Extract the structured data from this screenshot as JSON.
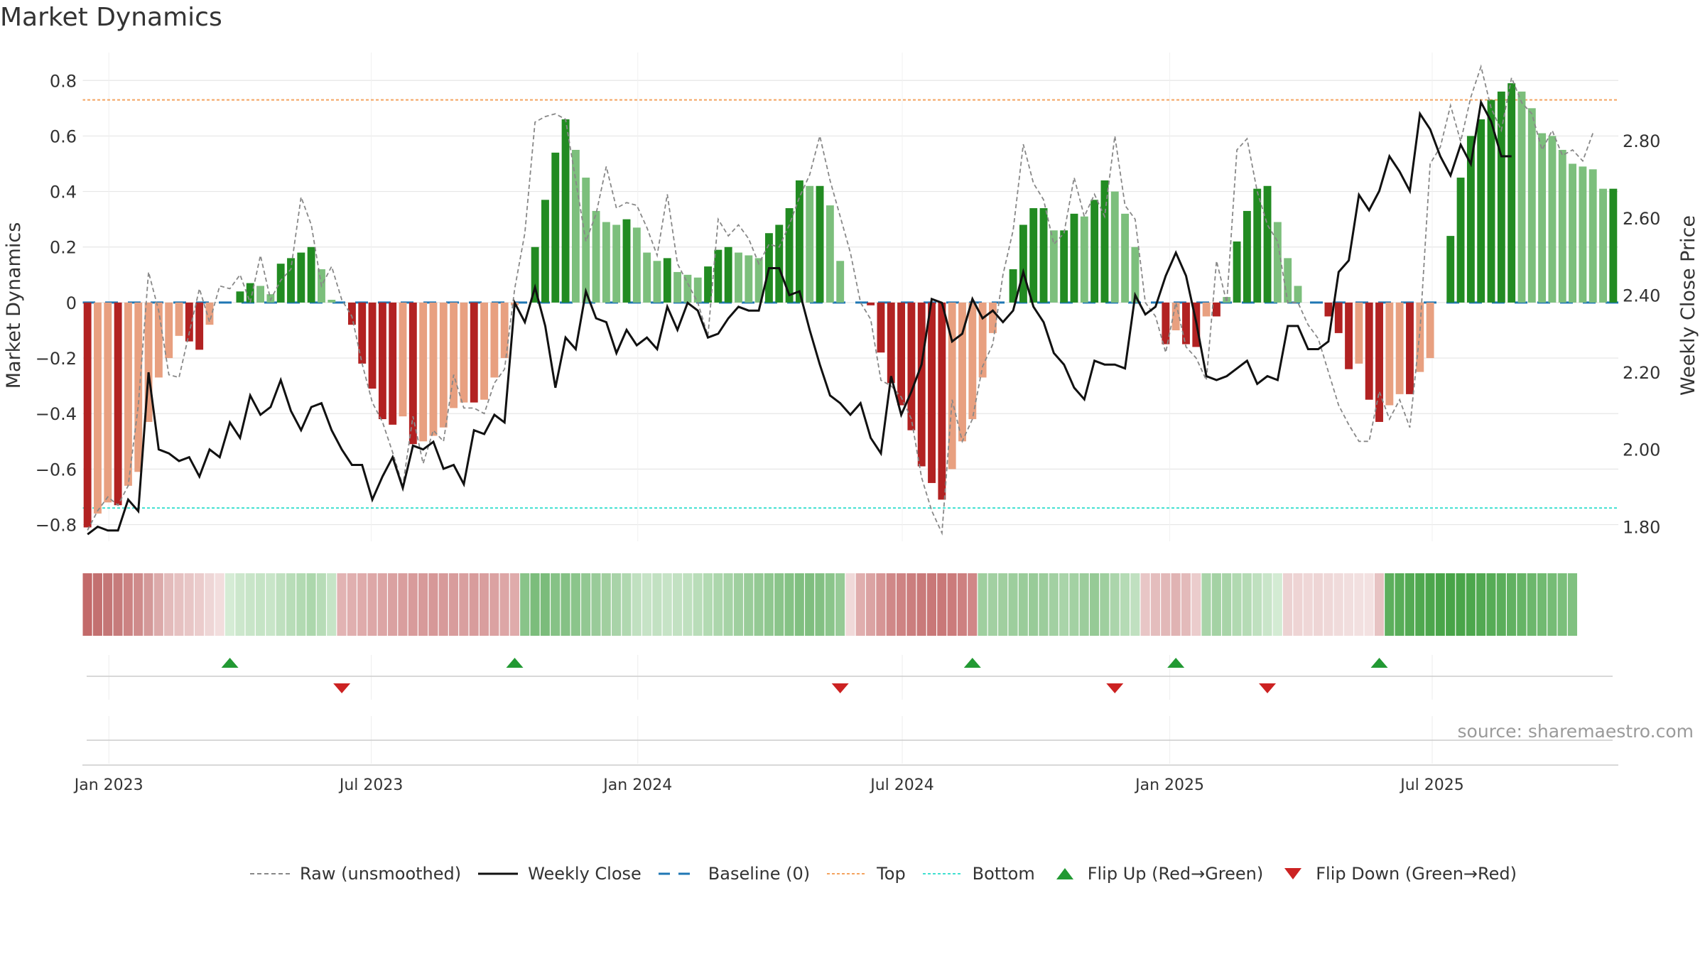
{
  "title": "Market Dynamics",
  "source": "source: sharemaestro.com",
  "chart_data": {
    "type": "bar",
    "y_label": "Market Dynamics",
    "y2_label": "Weekly Close Price",
    "y_ticks": [
      "0.8",
      "0.6",
      "0.4",
      "0.2",
      "0",
      "−0.2",
      "−0.4",
      "−0.6",
      "−0.8"
    ],
    "y_tick_values": [
      0.8,
      0.6,
      0.4,
      0.2,
      0,
      -0.2,
      -0.4,
      -0.6,
      -0.8
    ],
    "y2_ticks": [
      "2.80",
      "2.60",
      "2.40",
      "2.20",
      "2.00",
      "1.80"
    ],
    "y2_tick_values": [
      2.8,
      2.6,
      2.4,
      2.2,
      2.0,
      1.8
    ],
    "ylim": [
      -0.86,
      0.88
    ],
    "y2lim": [
      1.762,
      3.014
    ],
    "x_ticks": [
      "Jan 2023",
      "Jul 2023",
      "Jan 2024",
      "Jul 2024",
      "Jan 2025",
      "Jul 2025"
    ],
    "x_tick_weeks": [
      2.6,
      28.4,
      54.6,
      80.6,
      106.9,
      132.7
    ],
    "top_level": 0.73,
    "bottom_level": -0.74,
    "colors": {
      "strong_pos": "#228B22",
      "weak_pos": "#7CBF7C",
      "strong_neg": "#B22222",
      "weak_neg": "#E8A080",
      "close": "#111111",
      "raw": "#888888",
      "baseline": "#1f77b4",
      "top": "#F4A460",
      "bottom": "#40E0D0",
      "flip_up": "#229933",
      "flip_down": "#CC2222"
    },
    "series": [
      {
        "name": "Market Dynamics",
        "values": [
          -0.81,
          -0.76,
          -0.72,
          -0.73,
          -0.66,
          -0.61,
          -0.43,
          -0.27,
          -0.2,
          -0.12,
          -0.14,
          -0.17,
          -0.08,
          0.0,
          0.0,
          0.04,
          0.07,
          0.06,
          0.03,
          0.14,
          0.16,
          0.18,
          0.2,
          0.12,
          0.01,
          0.0,
          -0.08,
          -0.22,
          -0.31,
          -0.42,
          -0.44,
          -0.41,
          -0.51,
          -0.5,
          -0.48,
          -0.45,
          -0.38,
          -0.36,
          -0.36,
          -0.35,
          -0.27,
          -0.2,
          -0.01,
          0.0,
          0.2,
          0.37,
          0.54,
          0.66,
          0.55,
          0.45,
          0.33,
          0.29,
          0.28,
          0.3,
          0.27,
          0.18,
          0.15,
          0.16,
          0.11,
          0.1,
          0.09,
          0.13,
          0.19,
          0.2,
          0.18,
          0.17,
          0.16,
          0.25,
          0.28,
          0.34,
          0.44,
          0.42,
          0.42,
          0.35,
          0.15,
          0.0,
          0.0,
          -0.01,
          -0.18,
          -0.29,
          -0.37,
          -0.46,
          -0.59,
          -0.65,
          -0.71,
          -0.6,
          -0.5,
          -0.42,
          -0.27,
          -0.11,
          0.0,
          0.12,
          0.28,
          0.34,
          0.34,
          0.26,
          0.26,
          0.32,
          0.31,
          0.37,
          0.44,
          0.4,
          0.32,
          0.2,
          0.0,
          0.0,
          -0.15,
          -0.1,
          -0.15,
          -0.16,
          -0.05,
          -0.05,
          0.02,
          0.22,
          0.33,
          0.41,
          0.42,
          0.29,
          0.16,
          0.06,
          0.0,
          0.0,
          -0.05,
          -0.11,
          -0.24,
          -0.22,
          -0.35,
          -0.43,
          -0.37,
          -0.33,
          -0.33,
          -0.25,
          -0.2,
          0.0,
          0.24,
          0.45,
          0.6,
          0.66,
          0.73,
          0.76,
          0.79,
          0.76,
          0.7,
          0.61,
          0.6,
          0.55,
          0.5,
          0.49,
          0.48,
          0.41,
          0.41
        ]
      },
      {
        "name": "Raw (unsmoothed)",
        "values": [
          -0.82,
          -0.75,
          -0.7,
          -0.73,
          -0.66,
          -0.37,
          0.11,
          -0.03,
          -0.26,
          -0.27,
          -0.11,
          0.05,
          -0.07,
          0.06,
          0.05,
          0.1,
          0.0,
          0.17,
          0.01,
          0.08,
          0.12,
          0.38,
          0.28,
          0.06,
          0.13,
          0.01,
          -0.05,
          -0.22,
          -0.36,
          -0.43,
          -0.54,
          -0.66,
          -0.41,
          -0.58,
          -0.46,
          -0.5,
          -0.26,
          -0.38,
          -0.38,
          -0.4,
          -0.29,
          -0.24,
          0.05,
          0.25,
          0.65,
          0.67,
          0.68,
          0.66,
          0.44,
          0.22,
          0.32,
          0.49,
          0.34,
          0.36,
          0.35,
          0.27,
          0.17,
          0.39,
          0.14,
          0.07,
          0.0,
          -0.12,
          0.3,
          0.24,
          0.28,
          0.23,
          0.14,
          0.21,
          0.2,
          0.28,
          0.38,
          0.46,
          0.6,
          0.44,
          0.31,
          0.18,
          0.0,
          -0.06,
          -0.28,
          -0.3,
          -0.34,
          -0.42,
          -0.63,
          -0.75,
          -0.83,
          -0.35,
          -0.5,
          -0.42,
          -0.23,
          -0.15,
          0.1,
          0.26,
          0.57,
          0.43,
          0.37,
          0.21,
          0.25,
          0.45,
          0.31,
          0.39,
          0.31,
          0.6,
          0.35,
          0.3,
          0.0,
          -0.05,
          -0.18,
          0.0,
          -0.16,
          -0.2,
          -0.28,
          0.15,
          0.0,
          0.55,
          0.59,
          0.4,
          0.28,
          0.22,
          0.0,
          0.0,
          -0.08,
          -0.13,
          -0.25,
          -0.37,
          -0.44,
          -0.5,
          -0.5,
          -0.32,
          -0.42,
          -0.35,
          -0.45,
          -0.1,
          0.5,
          0.56,
          0.71,
          0.58,
          0.74,
          0.85,
          0.7,
          0.62,
          0.81,
          0.72,
          0.68,
          0.55,
          0.62,
          0.53,
          0.55,
          0.51,
          0.61
        ]
      },
      {
        "name": "Weekly Close",
        "values": [
          1.78,
          1.8,
          1.79,
          1.79,
          1.87,
          1.84,
          2.2,
          2.0,
          1.99,
          1.97,
          1.98,
          1.93,
          2.0,
          1.98,
          2.07,
          2.03,
          2.14,
          2.09,
          2.11,
          2.18,
          2.1,
          2.05,
          2.11,
          2.12,
          2.05,
          2.0,
          1.96,
          1.96,
          1.87,
          1.93,
          1.98,
          1.9,
          2.01,
          2.0,
          2.02,
          1.95,
          1.96,
          1.91,
          2.05,
          2.04,
          2.09,
          2.07,
          2.38,
          2.33,
          2.42,
          2.32,
          2.16,
          2.29,
          2.26,
          2.41,
          2.34,
          2.33,
          2.25,
          2.31,
          2.27,
          2.29,
          2.26,
          2.37,
          2.31,
          2.38,
          2.36,
          2.29,
          2.3,
          2.34,
          2.37,
          2.36,
          2.36,
          2.47,
          2.47,
          2.4,
          2.41,
          2.31,
          2.22,
          2.14,
          2.12,
          2.09,
          2.12,
          2.03,
          1.99,
          2.19,
          2.09,
          2.15,
          2.22,
          2.39,
          2.38,
          2.28,
          2.3,
          2.39,
          2.34,
          2.36,
          2.33,
          2.36,
          2.46,
          2.37,
          2.33,
          2.25,
          2.22,
          2.16,
          2.13,
          2.23,
          2.22,
          2.22,
          2.21,
          2.4,
          2.35,
          2.37,
          2.45,
          2.51,
          2.45,
          2.33,
          2.19,
          2.18,
          2.19,
          2.21,
          2.23,
          2.17,
          2.19,
          2.18,
          2.32,
          2.32,
          2.26,
          2.26,
          2.28,
          2.46,
          2.49,
          2.66,
          2.62,
          2.67,
          2.76,
          2.72,
          2.67,
          2.87,
          2.83,
          2.76,
          2.71,
          2.79,
          2.74,
          2.9,
          2.85,
          2.76,
          2.76
        ]
      }
    ],
    "flip_up_weeks": [
      14,
      42,
      87,
      107,
      127
    ],
    "flip_down_weeks": [
      25,
      74,
      101,
      116
    ],
    "strip_shades": [
      "#c36a6a",
      "#c37070",
      "#c47676",
      "#c67b7b",
      "#cc8383",
      "#cf8b8b",
      "#d49999",
      "#dcaaaa",
      "#e3bbbb",
      "#e6c1c1",
      "#e8c6c6",
      "#ebcccc",
      "#eed6d6",
      "#f2dddd",
      "#d5ecd5",
      "#cce7cc",
      "#c8e5c8",
      "#c5e4c5",
      "#c8e5c8",
      "#bfe0bf",
      "#b8ddb8",
      "#b2dab2",
      "#acd7ac",
      "#b7dcb7",
      "#c6e4c6",
      "#e2b3b3",
      "#e0afaf",
      "#dfabab",
      "#dda7a7",
      "#dca5a5",
      "#daa1a1",
      "#d99e9e",
      "#d89b9b",
      "#d79a9a",
      "#d69898",
      "#d79a9a",
      "#d89c9c",
      "#d99f9f",
      "#d89c9c",
      "#d99e9e",
      "#dba2a2",
      "#dda6a6",
      "#dfabab",
      "#89c489",
      "#7cbd7c",
      "#7bbc7b",
      "#86c286",
      "#85c185",
      "#8bc58b",
      "#92c892",
      "#99cb99",
      "#a1cf9f",
      "#a8d3a8",
      "#b0d8b0",
      "#c0e0c0",
      "#c6e3c6",
      "#c2e1c2",
      "#c6e3c6",
      "#c2e1c2",
      "#bfe0bf",
      "#b9ddb9",
      "#b2dab2",
      "#acd6ac",
      "#a6d3a6",
      "#9fcf9f",
      "#99cc99",
      "#94c994",
      "#8fc78f",
      "#8ac48a",
      "#85c285",
      "#80bf80",
      "#7fbe7f",
      "#83c083",
      "#8bc58b",
      "#96ca96",
      "#f0d9d9",
      "#e0aeae",
      "#dba3a3",
      "#d69595",
      "#d08888",
      "#ce8383",
      "#cb7e7e",
      "#c97a7a",
      "#c97878",
      "#c97878",
      "#cb7b7b",
      "#cd8080",
      "#d08787",
      "#9fcf9f",
      "#a2d0a2",
      "#a0cf9f",
      "#9dce9d",
      "#9acc9a",
      "#98cb98",
      "#9ccd9c",
      "#a2d0a2",
      "#a9d4a9",
      "#a3d1a3",
      "#9ccd9c",
      "#96ca96",
      "#9fcf9f",
      "#abd5ab",
      "#b5dbb5",
      "#c0e0c0",
      "#e8c6c6",
      "#e4bdbd",
      "#e2b8b8",
      "#e0b3b3",
      "#e3baba",
      "#ebcccc",
      "#a9d4a9",
      "#a4d2a4",
      "#a8d4a8",
      "#b1d9b1",
      "#b5dbb5",
      "#bfe0bf",
      "#c9e5c9",
      "#d3ebd3",
      "#ecd2d2",
      "#eed4d4",
      "#efd7d7",
      "#eed5d5",
      "#efd8d8",
      "#f0dbdb",
      "#f1dede",
      "#f2e0e0",
      "#f3e1e1",
      "#e7c3c3",
      "#5daf5d",
      "#58ad58",
      "#53aa53",
      "#4fa84f",
      "#4ca64c",
      "#49a549",
      "#48a448",
      "#4aa54a",
      "#4da74d",
      "#52a952",
      "#56ac56",
      "#5bae5b",
      "#61b161",
      "#66b466",
      "#6cb76c",
      "#71ba71",
      "#76bc76",
      "#7bbf7b",
      "#80c180"
    ],
    "x_weeks_total": 149
  },
  "legend": [
    {
      "label": "Raw (unsmoothed)",
      "icon": "dashed-gray-line"
    },
    {
      "label": "Weekly Close",
      "icon": "solid-black-line"
    },
    {
      "label": "Baseline (0)",
      "icon": "dashed-blue-line"
    },
    {
      "label": "Top",
      "icon": "dotted-orange-line"
    },
    {
      "label": "Bottom",
      "icon": "dotted-cyan-line"
    },
    {
      "label": "Flip Up (Red→Green)",
      "icon": "green-up-triangle"
    },
    {
      "label": "Flip Down (Green→Red)",
      "icon": "red-down-triangle"
    }
  ]
}
